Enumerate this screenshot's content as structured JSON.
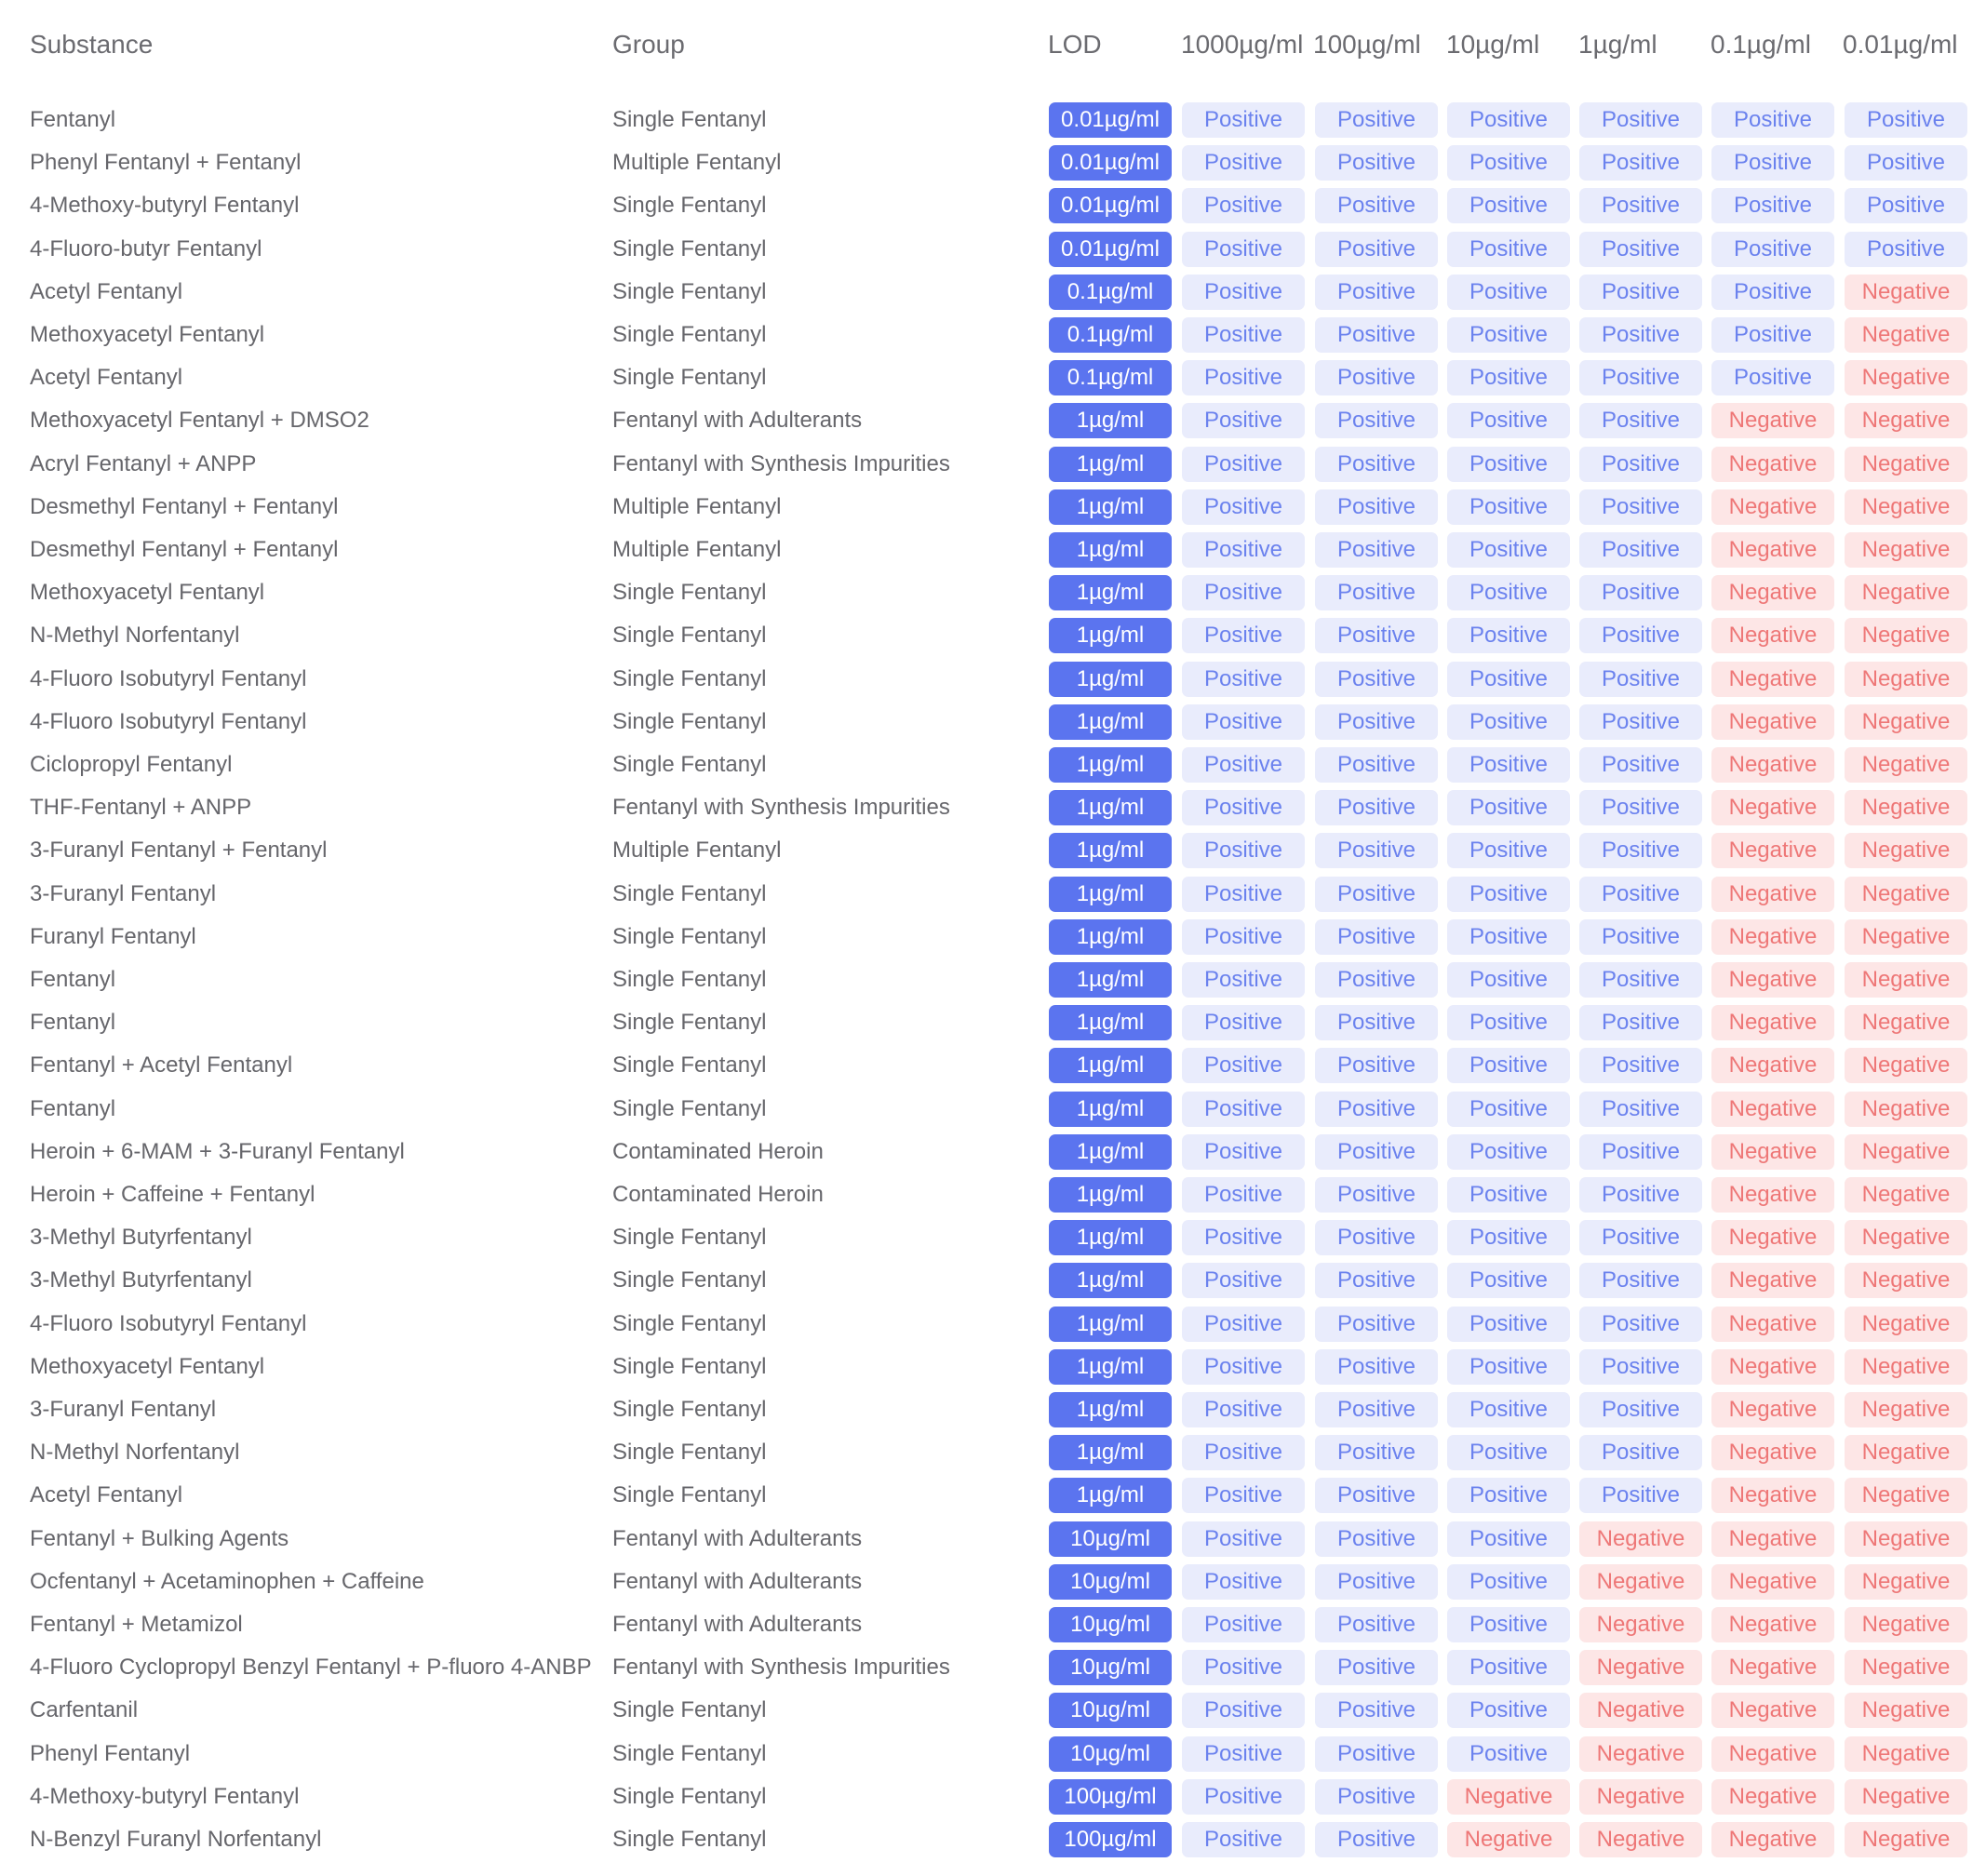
{
  "header": {
    "substance": "Substance",
    "group": "Group",
    "lod": "LOD",
    "concentrations": [
      "1000µg/ml",
      "100µg/ml",
      "10µg/ml",
      "1µg/ml",
      "0.1µg/ml",
      "0.01µg/ml"
    ]
  },
  "result_labels": {
    "P": "Positive",
    "N": "Negative"
  },
  "colors": {
    "lod_bg": "#5b74ef",
    "positive_bg": "#e9ecfc",
    "positive_text": "#6b82ee",
    "negative_bg": "#fde6e6",
    "negative_text": "#ee7777"
  },
  "rows": [
    {
      "substance": "Fentanyl",
      "group": "Single Fentanyl",
      "lod": "0.01µg/ml",
      "results": [
        "P",
        "P",
        "P",
        "P",
        "P",
        "P"
      ]
    },
    {
      "substance": "Phenyl Fentanyl + Fentanyl",
      "group": "Multiple Fentanyl",
      "lod": "0.01µg/ml",
      "results": [
        "P",
        "P",
        "P",
        "P",
        "P",
        "P"
      ]
    },
    {
      "substance": "4-Methoxy-butyryl Fentanyl",
      "group": "Single Fentanyl",
      "lod": "0.01µg/ml",
      "results": [
        "P",
        "P",
        "P",
        "P",
        "P",
        "P"
      ]
    },
    {
      "substance": "4-Fluoro-butyr Fentanyl",
      "group": "Single Fentanyl",
      "lod": "0.01µg/ml",
      "results": [
        "P",
        "P",
        "P",
        "P",
        "P",
        "P"
      ]
    },
    {
      "substance": "Acetyl Fentanyl",
      "group": "Single Fentanyl",
      "lod": "0.1µg/ml",
      "results": [
        "P",
        "P",
        "P",
        "P",
        "P",
        "N"
      ]
    },
    {
      "substance": "Methoxyacetyl Fentanyl",
      "group": "Single Fentanyl",
      "lod": "0.1µg/ml",
      "results": [
        "P",
        "P",
        "P",
        "P",
        "P",
        "N"
      ]
    },
    {
      "substance": "Acetyl Fentanyl",
      "group": "Single Fentanyl",
      "lod": "0.1µg/ml",
      "results": [
        "P",
        "P",
        "P",
        "P",
        "P",
        "N"
      ]
    },
    {
      "substance": "Methoxyacetyl Fentanyl + DMSO2",
      "group": "Fentanyl with Adulterants",
      "lod": "1µg/ml",
      "results": [
        "P",
        "P",
        "P",
        "P",
        "N",
        "N"
      ]
    },
    {
      "substance": "Acryl Fentanyl + ANPP",
      "group": "Fentanyl with Synthesis Impurities",
      "lod": "1µg/ml",
      "results": [
        "P",
        "P",
        "P",
        "P",
        "N",
        "N"
      ]
    },
    {
      "substance": "Desmethyl Fentanyl + Fentanyl",
      "group": "Multiple Fentanyl",
      "lod": "1µg/ml",
      "results": [
        "P",
        "P",
        "P",
        "P",
        "N",
        "N"
      ]
    },
    {
      "substance": "Desmethyl Fentanyl + Fentanyl",
      "group": "Multiple Fentanyl",
      "lod": "1µg/ml",
      "results": [
        "P",
        "P",
        "P",
        "P",
        "N",
        "N"
      ]
    },
    {
      "substance": "Methoxyacetyl Fentanyl",
      "group": "Single Fentanyl",
      "lod": "1µg/ml",
      "results": [
        "P",
        "P",
        "P",
        "P",
        "N",
        "N"
      ]
    },
    {
      "substance": "N-Methyl Norfentanyl",
      "group": "Single Fentanyl",
      "lod": "1µg/ml",
      "results": [
        "P",
        "P",
        "P",
        "P",
        "N",
        "N"
      ]
    },
    {
      "substance": "4-Fluoro Isobutyryl Fentanyl",
      "group": "Single Fentanyl",
      "lod": "1µg/ml",
      "results": [
        "P",
        "P",
        "P",
        "P",
        "N",
        "N"
      ]
    },
    {
      "substance": "4-Fluoro Isobutyryl Fentanyl",
      "group": "Single Fentanyl",
      "lod": "1µg/ml",
      "results": [
        "P",
        "P",
        "P",
        "P",
        "N",
        "N"
      ]
    },
    {
      "substance": "Ciclopropyl Fentanyl",
      "group": "Single Fentanyl",
      "lod": "1µg/ml",
      "results": [
        "P",
        "P",
        "P",
        "P",
        "N",
        "N"
      ]
    },
    {
      "substance": "THF-Fentanyl + ANPP",
      "group": "Fentanyl with Synthesis Impurities",
      "lod": "1µg/ml",
      "results": [
        "P",
        "P",
        "P",
        "P",
        "N",
        "N"
      ]
    },
    {
      "substance": "3-Furanyl Fentanyl + Fentanyl",
      "group": "Multiple Fentanyl",
      "lod": "1µg/ml",
      "results": [
        "P",
        "P",
        "P",
        "P",
        "N",
        "N"
      ]
    },
    {
      "substance": "3-Furanyl Fentanyl",
      "group": "Single Fentanyl",
      "lod": "1µg/ml",
      "results": [
        "P",
        "P",
        "P",
        "P",
        "N",
        "N"
      ]
    },
    {
      "substance": "Furanyl Fentanyl",
      "group": "Single Fentanyl",
      "lod": "1µg/ml",
      "results": [
        "P",
        "P",
        "P",
        "P",
        "N",
        "N"
      ]
    },
    {
      "substance": "Fentanyl",
      "group": "Single Fentanyl",
      "lod": "1µg/ml",
      "results": [
        "P",
        "P",
        "P",
        "P",
        "N",
        "N"
      ]
    },
    {
      "substance": "Fentanyl",
      "group": "Single Fentanyl",
      "lod": "1µg/ml",
      "results": [
        "P",
        "P",
        "P",
        "P",
        "N",
        "N"
      ]
    },
    {
      "substance": "Fentanyl + Acetyl  Fentanyl",
      "group": "Single Fentanyl",
      "lod": "1µg/ml",
      "results": [
        "P",
        "P",
        "P",
        "P",
        "N",
        "N"
      ]
    },
    {
      "substance": "Fentanyl",
      "group": "Single Fentanyl",
      "lod": "1µg/ml",
      "results": [
        "P",
        "P",
        "P",
        "P",
        "N",
        "N"
      ]
    },
    {
      "substance": "Heroin + 6-MAM + 3-Furanyl Fentanyl",
      "group": "Contaminated Heroin",
      "lod": "1µg/ml",
      "results": [
        "P",
        "P",
        "P",
        "P",
        "N",
        "N"
      ]
    },
    {
      "substance": "Heroin + Caffeine + Fentanyl",
      "group": "Contaminated Heroin",
      "lod": "1µg/ml",
      "results": [
        "P",
        "P",
        "P",
        "P",
        "N",
        "N"
      ]
    },
    {
      "substance": "3-Methyl Butyrfentanyl",
      "group": "Single Fentanyl",
      "lod": "1µg/ml",
      "results": [
        "P",
        "P",
        "P",
        "P",
        "N",
        "N"
      ]
    },
    {
      "substance": "3-Methyl Butyrfentanyl",
      "group": "Single Fentanyl",
      "lod": "1µg/ml",
      "results": [
        "P",
        "P",
        "P",
        "P",
        "N",
        "N"
      ]
    },
    {
      "substance": "4-Fluoro Isobutyryl Fentanyl",
      "group": "Single Fentanyl",
      "lod": "1µg/ml",
      "results": [
        "P",
        "P",
        "P",
        "P",
        "N",
        "N"
      ]
    },
    {
      "substance": "Methoxyacetyl Fentanyl",
      "group": "Single Fentanyl",
      "lod": "1µg/ml",
      "results": [
        "P",
        "P",
        "P",
        "P",
        "N",
        "N"
      ]
    },
    {
      "substance": "3-Furanyl Fentanyl",
      "group": "Single Fentanyl",
      "lod": "1µg/ml",
      "results": [
        "P",
        "P",
        "P",
        "P",
        "N",
        "N"
      ]
    },
    {
      "substance": "N-Methyl Norfentanyl",
      "group": "Single Fentanyl",
      "lod": "1µg/ml",
      "results": [
        "P",
        "P",
        "P",
        "P",
        "N",
        "N"
      ]
    },
    {
      "substance": "Acetyl Fentanyl",
      "group": "Single Fentanyl",
      "lod": "1µg/ml",
      "results": [
        "P",
        "P",
        "P",
        "P",
        "N",
        "N"
      ]
    },
    {
      "substance": "Fentanyl + Bulking Agents",
      "group": "Fentanyl with Adulterants",
      "lod": "10µg/ml",
      "results": [
        "P",
        "P",
        "P",
        "N",
        "N",
        "N"
      ]
    },
    {
      "substance": "Ocfentanyl + Acetaminophen + Caffeine",
      "group": "Fentanyl with Adulterants",
      "lod": "10µg/ml",
      "results": [
        "P",
        "P",
        "P",
        "N",
        "N",
        "N"
      ]
    },
    {
      "substance": "Fentanyl + Metamizol",
      "group": "Fentanyl with Adulterants",
      "lod": "10µg/ml",
      "results": [
        "P",
        "P",
        "P",
        "N",
        "N",
        "N"
      ]
    },
    {
      "substance": "4-Fluoro Cyclopropyl Benzyl Fentanyl + P-fluoro 4-ANBP",
      "group": "Fentanyl with Synthesis Impurities",
      "lod": "10µg/ml",
      "results": [
        "P",
        "P",
        "P",
        "N",
        "N",
        "N"
      ]
    },
    {
      "substance": "Carfentanil",
      "group": "Single Fentanyl",
      "lod": "10µg/ml",
      "results": [
        "P",
        "P",
        "P",
        "N",
        "N",
        "N"
      ]
    },
    {
      "substance": "Phenyl Fentanyl",
      "group": "Single Fentanyl",
      "lod": "10µg/ml",
      "results": [
        "P",
        "P",
        "P",
        "N",
        "N",
        "N"
      ]
    },
    {
      "substance": "4-Methoxy-butyryl Fentanyl",
      "group": "Single Fentanyl",
      "lod": "100µg/ml",
      "results": [
        "P",
        "P",
        "N",
        "N",
        "N",
        "N"
      ]
    },
    {
      "substance": "N-Benzyl Furanyl Norfentanyl",
      "group": "Single Fentanyl",
      "lod": "100µg/ml",
      "results": [
        "P",
        "P",
        "N",
        "N",
        "N",
        "N"
      ]
    }
  ]
}
